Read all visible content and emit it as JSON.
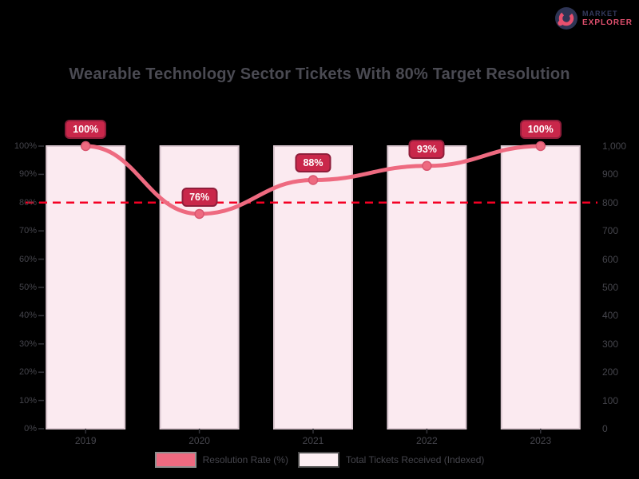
{
  "logo": {
    "line1": "MARKET",
    "line2": "EXPLORER",
    "icon": "donut-chart-icon"
  },
  "title": "Wearable Technology Sector Tickets With 80% Target Resolution",
  "colors": {
    "background": "#000000",
    "title_text": "#4a4a52",
    "axis_text": "#45454c",
    "bar_fill": "#fbeaf0",
    "bar_border": "#dcc8d1",
    "line": "#ee6a80",
    "marker_edge": "#d95670",
    "badge_bg": "#c9274a",
    "badge_border": "#8f1d3a",
    "badge_text": "#ffffff",
    "target": "#f40024",
    "legend_text": "#45454c",
    "tick_mark": "#35353b",
    "logo_navy": "#343a5e",
    "logo_pink": "#e0506e"
  },
  "chart_data": {
    "type": "bar",
    "categories": [
      "2019",
      "2020",
      "2021",
      "2022",
      "2023"
    ],
    "series": [
      {
        "name": "Total Tickets Received (Indexed)",
        "type": "bar",
        "axis": "right",
        "values": [
          1000,
          1000,
          1000,
          1000,
          1000
        ]
      },
      {
        "name": "Resolution Rate (%)",
        "type": "line",
        "axis": "left",
        "values": [
          100,
          76,
          88,
          93,
          100
        ]
      }
    ],
    "point_labels": [
      "100%",
      "76%",
      "88%",
      "93%",
      "100%"
    ],
    "target_line": {
      "value": 80,
      "style": "dashed"
    },
    "left_axis": {
      "min": 0,
      "max": 100,
      "ticks": [
        "0%",
        "10%",
        "20%",
        "30%",
        "40%",
        "50%",
        "60%",
        "70%",
        "80%",
        "90%",
        "100%"
      ]
    },
    "right_axis": {
      "min": 0,
      "max": 1000,
      "ticks": [
        "0",
        "100",
        "200",
        "300",
        "400",
        "500",
        "600",
        "700",
        "800",
        "900",
        "1,000"
      ]
    },
    "legend": [
      {
        "label": "Resolution Rate (%)",
        "swatch": "#ee6a80",
        "swatch_border": "#8f8f8f"
      },
      {
        "label": "Total Tickets Received (Indexed)",
        "swatch": "#fceef2",
        "swatch_border": "#4a4a4a"
      }
    ],
    "grid": false,
    "legend_position": "bottom"
  }
}
